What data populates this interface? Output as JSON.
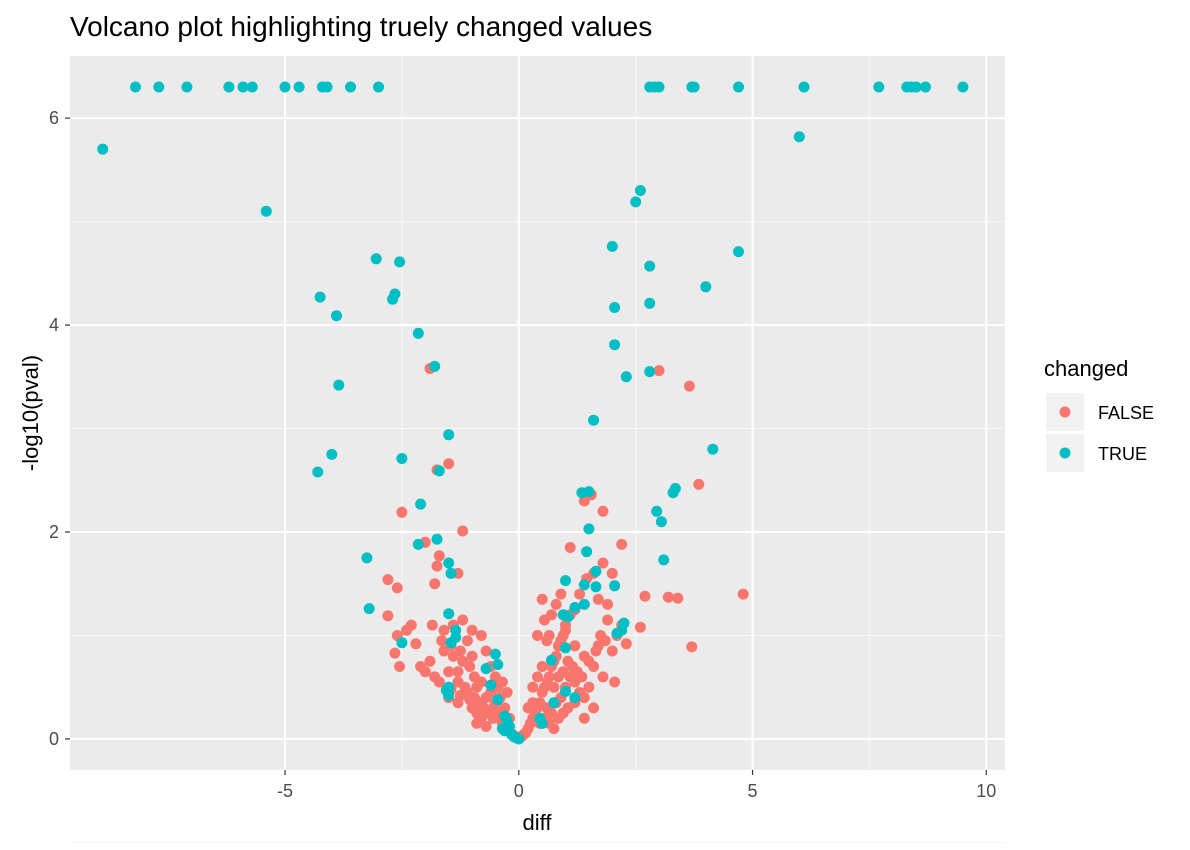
{
  "chart_data": {
    "type": "scatter",
    "title": "Volcano plot highlighting truely changed values",
    "xlabel": "diff",
    "ylabel": "-log10(pval)",
    "xlim": [
      -9.6,
      10.4
    ],
    "ylim": [
      -0.3,
      6.6
    ],
    "x_ticks": [
      -5,
      0,
      5,
      10
    ],
    "y_ticks": [
      0,
      2,
      4,
      6
    ],
    "x_tick_labels": [
      "-5",
      "0",
      "5",
      "10"
    ],
    "y_tick_labels": [
      "0",
      "2",
      "4",
      "6"
    ],
    "grid": true,
    "background": "#ebebeb",
    "legend": {
      "title": "changed",
      "position": "right",
      "entries": [
        {
          "label": "FALSE",
          "color": "#f8766d"
        },
        {
          "label": "TRUE",
          "color": "#00bfc4"
        }
      ]
    },
    "series": [
      {
        "color": "#f8766d",
        "points": [
          [
            -1.9,
            3.58
          ],
          [
            -1.75,
            2.6
          ],
          [
            -1.5,
            2.66
          ],
          [
            -2.5,
            2.19
          ],
          [
            -1.2,
            2.01
          ],
          [
            -2.0,
            1.9
          ],
          [
            -1.7,
            1.77
          ],
          [
            -1.3,
            1.6
          ],
          [
            -1.75,
            1.67
          ],
          [
            -2.8,
            1.54
          ],
          [
            -2.6,
            1.46
          ],
          [
            -1.8,
            1.5
          ],
          [
            -2.8,
            1.19
          ],
          [
            -2.6,
            1.0
          ],
          [
            -2.4,
            1.05
          ],
          [
            -2.3,
            1.1
          ],
          [
            -2.65,
            0.83
          ],
          [
            -2.2,
            0.92
          ],
          [
            -2.1,
            0.7
          ],
          [
            -1.9,
            0.75
          ],
          [
            -1.8,
            0.6
          ],
          [
            -2.55,
            0.7
          ],
          [
            -1.6,
            0.85
          ],
          [
            -1.4,
            0.8
          ],
          [
            -1.3,
            0.65
          ],
          [
            -1.2,
            0.75
          ],
          [
            -1.1,
            0.95
          ],
          [
            -1.0,
            0.8
          ],
          [
            -0.95,
            0.6
          ],
          [
            -0.9,
            0.5
          ],
          [
            -0.8,
            0.55
          ],
          [
            -0.7,
            0.4
          ],
          [
            -0.6,
            0.45
          ],
          [
            -0.55,
            0.3
          ],
          [
            -0.5,
            0.35
          ],
          [
            -0.45,
            0.25
          ],
          [
            -0.4,
            0.2
          ],
          [
            -0.35,
            0.15
          ],
          [
            -0.3,
            0.1
          ],
          [
            -0.25,
            0.12
          ],
          [
            -0.2,
            0.08
          ],
          [
            -0.15,
            0.05
          ],
          [
            -0.1,
            0.03
          ],
          [
            -0.05,
            0.02
          ],
          [
            -1.5,
            0.4
          ],
          [
            -1.3,
            0.35
          ],
          [
            -1.1,
            0.45
          ],
          [
            -1.0,
            0.3
          ],
          [
            -0.9,
            0.25
          ],
          [
            -0.8,
            0.2
          ],
          [
            -1.6,
            1.05
          ],
          [
            -1.4,
            1.1
          ],
          [
            -1.2,
            1.15
          ],
          [
            -1.0,
            1.05
          ],
          [
            -0.8,
            1.0
          ],
          [
            -0.7,
            0.85
          ],
          [
            -0.6,
            0.7
          ],
          [
            -0.5,
            0.6
          ],
          [
            -0.45,
            0.5
          ],
          [
            -0.4,
            0.4
          ],
          [
            -1.5,
            0.65
          ],
          [
            -1.3,
            0.55
          ],
          [
            -1.15,
            0.5
          ],
          [
            -0.95,
            0.4
          ],
          [
            -0.85,
            0.35
          ],
          [
            -0.75,
            0.3
          ],
          [
            -0.65,
            0.25
          ],
          [
            -0.55,
            0.2
          ],
          [
            -2.0,
            0.65
          ],
          [
            -1.7,
            0.55
          ],
          [
            -1.45,
            0.48
          ],
          [
            -1.25,
            0.42
          ],
          [
            -1.05,
            0.38
          ],
          [
            -0.9,
            0.15
          ],
          [
            -0.7,
            0.12
          ],
          [
            -1.85,
            1.1
          ],
          [
            -1.65,
            0.95
          ],
          [
            -1.45,
            0.9
          ],
          [
            -1.25,
            0.85
          ],
          [
            -1.05,
            0.7
          ],
          [
            -0.3,
            0.3
          ],
          [
            -0.35,
            0.55
          ],
          [
            -0.25,
            0.45
          ],
          [
            -0.2,
            0.2
          ],
          [
            0.05,
            0.02
          ],
          [
            0.1,
            0.04
          ],
          [
            0.15,
            0.06
          ],
          [
            0.2,
            0.1
          ],
          [
            0.25,
            0.15
          ],
          [
            0.3,
            0.2
          ],
          [
            0.35,
            0.25
          ],
          [
            0.4,
            0.3
          ],
          [
            0.45,
            0.35
          ],
          [
            0.5,
            0.45
          ],
          [
            0.55,
            0.5
          ],
          [
            0.6,
            0.55
          ],
          [
            0.65,
            0.6
          ],
          [
            0.7,
            0.7
          ],
          [
            0.75,
            0.75
          ],
          [
            0.8,
            0.8
          ],
          [
            0.85,
            0.9
          ],
          [
            0.9,
            0.95
          ],
          [
            0.95,
            1.0
          ],
          [
            1.0,
            1.1
          ],
          [
            1.1,
            1.2
          ],
          [
            1.2,
            1.25
          ],
          [
            1.3,
            1.4
          ],
          [
            1.45,
            1.55
          ],
          [
            1.6,
            1.6
          ],
          [
            1.8,
            1.7
          ],
          [
            2.0,
            1.6
          ],
          [
            2.2,
            1.88
          ],
          [
            1.4,
            2.3
          ],
          [
            1.55,
            2.36
          ],
          [
            1.8,
            2.2
          ],
          [
            1.7,
            1.35
          ],
          [
            1.9,
            1.15
          ],
          [
            2.1,
            1.0
          ],
          [
            2.3,
            0.92
          ],
          [
            2.05,
            0.55
          ],
          [
            2.6,
            1.08
          ],
          [
            2.7,
            1.38
          ],
          [
            3.2,
            1.37
          ],
          [
            3.4,
            1.36
          ],
          [
            3.7,
            0.89
          ],
          [
            4.8,
            1.4
          ],
          [
            3.0,
            3.56
          ],
          [
            3.65,
            3.41
          ],
          [
            3.85,
            2.46
          ],
          [
            0.4,
            1.0
          ],
          [
            0.5,
            1.35
          ],
          [
            0.6,
            0.95
          ],
          [
            0.7,
            1.2
          ],
          [
            0.8,
            1.3
          ],
          [
            0.9,
            1.4
          ],
          [
            1.0,
            1.05
          ],
          [
            1.2,
            0.9
          ],
          [
            1.4,
            0.8
          ],
          [
            1.6,
            0.7
          ],
          [
            1.8,
            0.6
          ],
          [
            2.0,
            0.85
          ],
          [
            0.3,
            0.5
          ],
          [
            0.4,
            0.6
          ],
          [
            0.5,
            0.7
          ],
          [
            0.6,
            0.3
          ],
          [
            0.7,
            0.25
          ],
          [
            0.8,
            0.35
          ],
          [
            0.9,
            0.4
          ],
          [
            1.0,
            0.5
          ],
          [
            1.1,
            0.6
          ],
          [
            1.2,
            0.55
          ],
          [
            1.3,
            0.45
          ],
          [
            1.4,
            0.4
          ],
          [
            1.5,
            0.5
          ],
          [
            0.2,
            0.3
          ],
          [
            0.3,
            0.35
          ],
          [
            1.7,
            0.9
          ],
          [
            1.9,
            1.3
          ],
          [
            2.2,
            1.1
          ],
          [
            0.55,
            1.15
          ],
          [
            0.65,
            1.0
          ],
          [
            0.75,
            0.5
          ],
          [
            0.85,
            0.6
          ],
          [
            0.95,
            0.65
          ],
          [
            1.05,
            0.75
          ],
          [
            1.15,
            0.7
          ],
          [
            1.25,
            0.65
          ],
          [
            1.35,
            0.6
          ],
          [
            1.5,
            0.75
          ],
          [
            1.65,
            0.85
          ],
          [
            1.75,
            1.0
          ],
          [
            1.85,
            0.95
          ],
          [
            0.45,
            0.15
          ],
          [
            0.55,
            0.2
          ],
          [
            0.65,
            0.15
          ],
          [
            0.75,
            0.1
          ],
          [
            0.85,
            0.2
          ],
          [
            0.95,
            0.25
          ],
          [
            1.05,
            0.3
          ],
          [
            1.2,
            0.35
          ],
          [
            1.4,
            0.2
          ],
          [
            1.6,
            0.3
          ],
          [
            1.1,
            1.85
          ]
        ]
      },
      {
        "color": "#00bfc4",
        "points": [
          [
            -8.2,
            6.3
          ],
          [
            -7.7,
            6.3
          ],
          [
            -7.1,
            6.3
          ],
          [
            -6.2,
            6.3
          ],
          [
            -5.9,
            6.3
          ],
          [
            -5.7,
            6.3
          ],
          [
            -5.0,
            6.3
          ],
          [
            -4.7,
            6.3
          ],
          [
            -4.2,
            6.3
          ],
          [
            -4.1,
            6.3
          ],
          [
            -3.6,
            6.3
          ],
          [
            -3.0,
            6.3
          ],
          [
            2.8,
            6.3
          ],
          [
            2.9,
            6.3
          ],
          [
            3.0,
            6.3
          ],
          [
            3.7,
            6.3
          ],
          [
            3.75,
            6.3
          ],
          [
            4.7,
            6.3
          ],
          [
            6.1,
            6.3
          ],
          [
            7.7,
            6.3
          ],
          [
            8.3,
            6.3
          ],
          [
            8.4,
            6.3
          ],
          [
            8.5,
            6.3
          ],
          [
            8.7,
            6.3
          ],
          [
            9.5,
            6.3
          ],
          [
            -8.9,
            5.7
          ],
          [
            6.0,
            5.82
          ],
          [
            -5.4,
            5.1
          ],
          [
            2.6,
            5.3
          ],
          [
            2.5,
            5.19
          ],
          [
            2.0,
            4.76
          ],
          [
            4.7,
            4.71
          ],
          [
            -3.05,
            4.64
          ],
          [
            -2.55,
            4.61
          ],
          [
            2.8,
            4.57
          ],
          [
            4.0,
            4.37
          ],
          [
            -2.65,
            4.3
          ],
          [
            -4.25,
            4.27
          ],
          [
            -2.7,
            4.25
          ],
          [
            2.8,
            4.21
          ],
          [
            2.05,
            4.17
          ],
          [
            -3.9,
            4.09
          ],
          [
            -2.15,
            3.92
          ],
          [
            2.05,
            3.81
          ],
          [
            -1.8,
            3.6
          ],
          [
            2.8,
            3.55
          ],
          [
            2.3,
            3.5
          ],
          [
            -3.85,
            3.42
          ],
          [
            1.6,
            3.08
          ],
          [
            -1.5,
            2.94
          ],
          [
            4.15,
            2.8
          ],
          [
            -4.0,
            2.75
          ],
          [
            -2.5,
            2.71
          ],
          [
            -4.3,
            2.58
          ],
          [
            -1.7,
            2.59
          ],
          [
            3.35,
            2.42
          ],
          [
            3.3,
            2.38
          ],
          [
            1.35,
            2.38
          ],
          [
            1.5,
            2.39
          ],
          [
            -2.1,
            2.27
          ],
          [
            2.95,
            2.2
          ],
          [
            3.05,
            2.1
          ],
          [
            1.5,
            2.03
          ],
          [
            -1.75,
            1.93
          ],
          [
            -2.15,
            1.88
          ],
          [
            1.45,
            1.81
          ],
          [
            -3.25,
            1.75
          ],
          [
            3.1,
            1.73
          ],
          [
            -1.5,
            1.7
          ],
          [
            -1.45,
            1.6
          ],
          [
            1.65,
            1.62
          ],
          [
            1.0,
            1.53
          ],
          [
            1.4,
            1.49
          ],
          [
            2.05,
            1.48
          ],
          [
            1.65,
            1.47
          ],
          [
            1.4,
            1.3
          ],
          [
            1.2,
            1.27
          ],
          [
            -3.2,
            1.26
          ],
          [
            -1.5,
            1.21
          ],
          [
            0.95,
            1.2
          ],
          [
            1.05,
            1.18
          ],
          [
            2.25,
            1.12
          ],
          [
            -1.35,
            1.05
          ],
          [
            2.2,
            1.05
          ],
          [
            2.1,
            1.02
          ],
          [
            -1.35,
            0.98
          ],
          [
            -1.45,
            0.93
          ],
          [
            -2.5,
            0.93
          ],
          [
            1.0,
            0.88
          ],
          [
            -0.5,
            0.82
          ],
          [
            0.7,
            0.76
          ],
          [
            -0.45,
            0.72
          ],
          [
            -0.7,
            0.68
          ],
          [
            -0.6,
            0.52
          ],
          [
            -1.5,
            0.5
          ],
          [
            -1.55,
            0.47
          ],
          [
            -1.5,
            0.42
          ],
          [
            1.0,
            0.46
          ],
          [
            -0.45,
            0.38
          ],
          [
            0.75,
            0.35
          ],
          [
            1.2,
            0.4
          ],
          [
            -0.3,
            0.22
          ],
          [
            -0.25,
            0.18
          ],
          [
            0.45,
            0.2
          ],
          [
            0.5,
            0.15
          ],
          [
            -0.3,
            0.08
          ],
          [
            -0.15,
            0.04
          ],
          [
            -0.1,
            0.02
          ],
          [
            0.0,
            0.0
          ],
          [
            -0.05,
            0.01
          ],
          [
            -0.35,
            0.1
          ],
          [
            -0.2,
            0.12
          ]
        ]
      }
    ]
  }
}
